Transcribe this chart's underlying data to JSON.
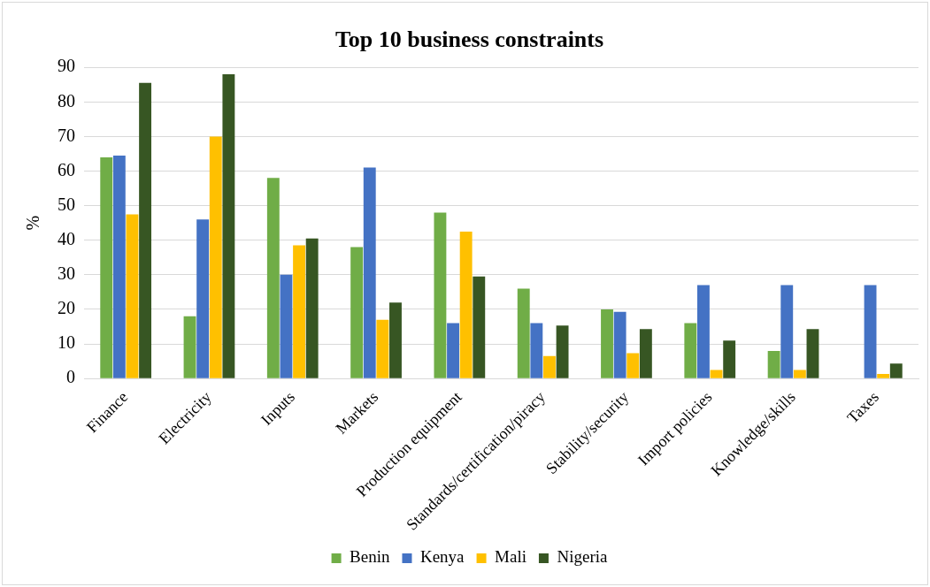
{
  "chart_data": {
    "type": "bar",
    "title": "Top 10 business constraints",
    "ylabel": "%",
    "categories": [
      "Finance",
      "Electricity",
      "Inputs",
      "Markets",
      "Production equipment",
      "Standards/certification/piracy",
      "Stability/security",
      "Import policies",
      "Knowledge/skills",
      "Taxes"
    ],
    "series": [
      {
        "name": "Benin",
        "color": "#70ad47",
        "values": [
          64,
          18,
          58,
          38,
          48,
          26,
          20,
          16,
          8,
          0
        ]
      },
      {
        "name": "Kenya",
        "color": "#4472c4",
        "values": [
          64.5,
          46,
          30,
          61,
          16,
          16,
          19.3,
          27,
          27,
          27
        ]
      },
      {
        "name": "Mali",
        "color": "#ffc000",
        "values": [
          47.5,
          70,
          38.5,
          17,
          42.5,
          6.5,
          7.3,
          2.5,
          2.5,
          1.3
        ]
      },
      {
        "name": "Nigeria",
        "color": "#375623",
        "values": [
          85.5,
          88,
          40.5,
          22,
          29.5,
          15.3,
          14.3,
          11,
          14.3,
          4.3
        ]
      }
    ],
    "ylim": [
      0,
      90
    ],
    "yticks": [
      0,
      10,
      20,
      30,
      40,
      50,
      60,
      70,
      80,
      90
    ],
    "grid": "y",
    "legend": "bottom"
  }
}
